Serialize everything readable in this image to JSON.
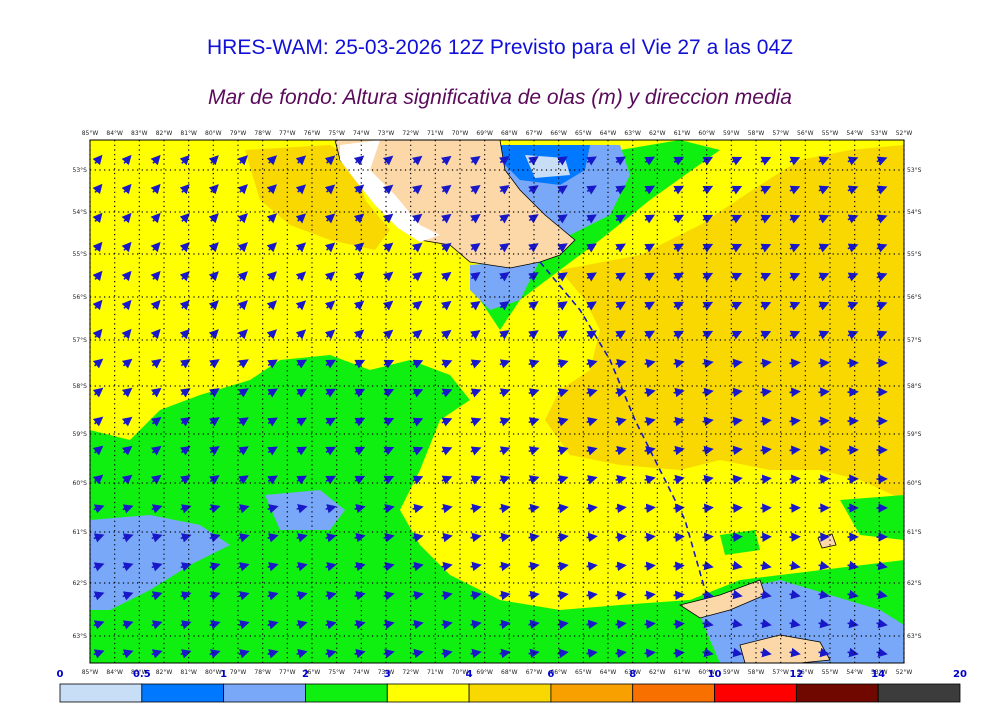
{
  "title": "HRES-WAM: 25-03-2026 12Z Previsto para el Vie 27 a las 04Z",
  "subtitle": "Mar de fondo: Altura significativa de olas (m) y direccion media",
  "map": {
    "lon_labels": [
      "85°W",
      "84°W",
      "83°W",
      "82°W",
      "81°W",
      "80°W",
      "79°W",
      "78°W",
      "77°W",
      "76°W",
      "75°W",
      "74°W",
      "73°W",
      "72°W",
      "71°W",
      "70°W",
      "69°W",
      "68°W",
      "67°W",
      "66°W",
      "65°W",
      "64°W",
      "63°W",
      "62°W",
      "61°W",
      "60°W",
      "59°W",
      "58°W",
      "57°W",
      "56°W",
      "55°W",
      "54°W",
      "53°W",
      "52°W"
    ],
    "lat_labels": [
      "53°S",
      "54°S",
      "55°S",
      "56°S",
      "57°S",
      "58°S",
      "59°S",
      "60°S",
      "61°S",
      "62°S",
      "63°S"
    ],
    "colors": {
      "land": "#fcd8a8",
      "very_light_blue": "#c8ddf6",
      "mid_blue": "#0078ff",
      "light_blue": "#7aa8f8",
      "green": "#10f010",
      "yellow": "#ffff00",
      "gold": "#f8d800",
      "arrow": "#1818c8"
    }
  },
  "colorbar": {
    "labels": [
      "0",
      "0.5",
      "1",
      "2",
      "3",
      "4",
      "6",
      "8",
      "10",
      "12",
      "14",
      "20"
    ],
    "colors": [
      "#c8ddf6",
      "#0078ff",
      "#7aa8f8",
      "#10f010",
      "#ffff00",
      "#f8d800",
      "#f8a000",
      "#f87000",
      "#ff0000",
      "#700800",
      "#3c3c3c"
    ]
  }
}
